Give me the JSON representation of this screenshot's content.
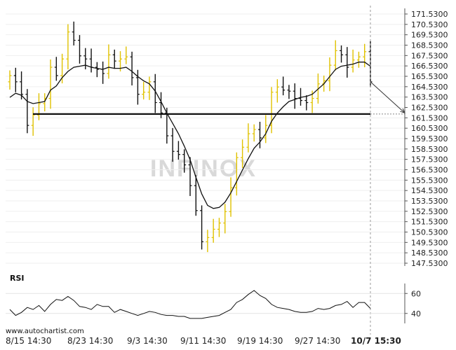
{
  "chart_data": [
    {
      "type": "bar",
      "style": "ohlc-bars",
      "title": "",
      "y_ticks": [
        "171.5300",
        "170.5300",
        "169.5300",
        "168.5300",
        "167.5300",
        "166.5300",
        "165.5300",
        "164.5300",
        "163.5300",
        "162.5300",
        "161.5300",
        "160.5300",
        "159.5300",
        "158.5300",
        "157.5300",
        "156.5300",
        "155.5300",
        "154.5300",
        "153.5300",
        "152.5300",
        "151.5300",
        "150.5300",
        "149.5300",
        "148.5300",
        "147.5300"
      ],
      "ylim": [
        147.53,
        171.53
      ],
      "x_ticks": [
        "8/15 14:30",
        "8/23 14:30",
        "9/3 14:30",
        "9/11 14:30",
        "9/19 14:30",
        "9/27 14:30",
        "10/7 15:30"
      ],
      "support_level": 161.9,
      "current_time_marker": "10/7 15:30",
      "forecast_target": 162.0,
      "colors": {
        "up": "#e0c200",
        "down": "#111111",
        "ma": "#111111",
        "support": "#111111",
        "marker": "#999999",
        "forecast": "#333333"
      },
      "series": [
        {
          "type": "ohlc",
          "close": [
            165.6,
            165.0,
            163.8,
            160.8,
            161.8,
            162.9,
            163.4,
            166.4,
            165.6,
            167.2,
            169.8,
            169.0,
            167.5,
            167.2,
            166.4,
            166.2,
            165.8,
            167.6,
            167.0,
            167.2,
            167.4,
            165.4,
            163.8,
            164.0,
            165.0,
            163.0,
            162.0,
            159.8,
            158.3,
            158.0,
            157.0,
            155.0,
            152.6,
            149.6,
            150.0,
            150.8,
            151.4,
            152.5,
            154.8,
            157.7,
            158.7,
            160.0,
            160.4,
            159.6,
            160.8,
            164.0,
            164.5,
            164.2,
            164.1,
            163.4,
            163.2,
            163.0,
            163.4,
            164.8,
            165.1,
            166.6,
            168.0,
            167.6,
            166.4,
            167.1,
            167.4,
            167.9,
            165.0
          ]
        },
        {
          "type": "line",
          "name": "",
          "values": [
            163.5,
            163.9,
            163.7,
            163.1,
            162.9,
            163.0,
            163.1,
            164.2,
            164.6,
            165.4,
            166.0,
            166.4,
            166.5,
            166.6,
            166.4,
            166.3,
            166.2,
            166.4,
            166.3,
            166.3,
            166.4,
            166.0,
            165.5,
            165.1,
            164.8,
            164.1,
            163.1,
            162.0,
            161.0,
            160.0,
            158.8,
            157.5,
            155.8,
            154.2,
            153.1,
            152.8,
            152.9,
            153.4,
            154.3,
            155.4,
            156.5,
            157.6,
            158.6,
            159.2,
            160.0,
            161.2,
            162.0,
            162.6,
            163.1,
            163.3,
            163.5,
            163.6,
            163.8,
            164.3,
            164.8,
            165.5,
            166.2,
            166.5,
            166.6,
            166.7,
            166.9,
            166.9,
            166.5
          ]
        }
      ]
    },
    {
      "type": "line",
      "title": "RSI",
      "y_ticks": [
        "60",
        "40"
      ],
      "ylim": [
        30,
        70
      ],
      "series": [
        {
          "name": "",
          "values": [
            44,
            38,
            41,
            46,
            44,
            48,
            42,
            49,
            54,
            53,
            57,
            53,
            47,
            46,
            44,
            49,
            47,
            47,
            41,
            44,
            42,
            40,
            38,
            40,
            42,
            41,
            39,
            38,
            38,
            37,
            37,
            35,
            35,
            35,
            36,
            37,
            38,
            41,
            44,
            51,
            54,
            59,
            63,
            58,
            55,
            49,
            46,
            45,
            44,
            42,
            41,
            41,
            42,
            45,
            44,
            45,
            48,
            49,
            52,
            46,
            51,
            51,
            45
          ]
        }
      ]
    }
  ],
  "watermark": "INFINOX",
  "credit": "www.autochartist.com"
}
